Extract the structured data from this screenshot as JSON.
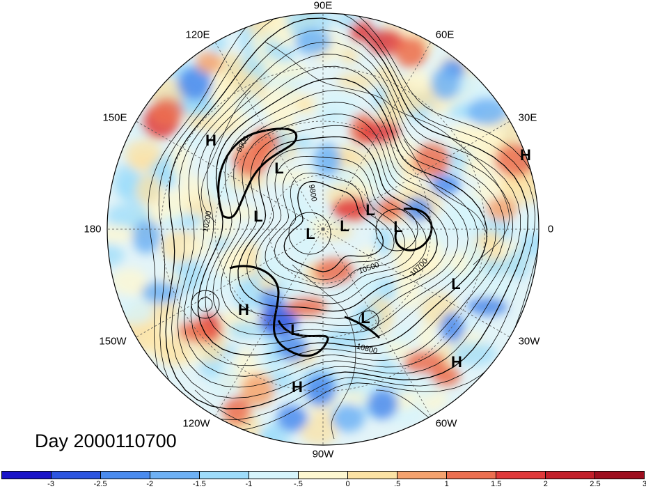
{
  "title": "Day 2000110700",
  "longitude_labels": {
    "lon_90E": "90E",
    "lon_60E": "60E",
    "lon_30E": "30E",
    "lon_0": "0",
    "lon_30W": "30W",
    "lon_60W": "60W",
    "lon_90W": "90W",
    "lon_120W": "120W",
    "lon_150W": "150W",
    "lon_180": "180",
    "lon_150E": "150E",
    "lon_120E": "120E"
  },
  "pressure_centers": {
    "h1": "H",
    "h2": "H",
    "h3": "H",
    "h4": "H",
    "h5": "H",
    "l1": "L",
    "l2": "L",
    "l3": "L",
    "l4": "L",
    "l5": "L",
    "l6": "L",
    "l7": "L",
    "l8": "L",
    "l9": "L"
  },
  "contour_labels": {
    "c9800": "9800",
    "c10500": "10500",
    "c10700": "10700",
    "c10800": "10800",
    "c10200": "10200",
    "c9900": "9900"
  },
  "colorbar": {
    "colors": [
      "#1a14c8",
      "#2d55e0",
      "#4a8bef",
      "#6eb1f5",
      "#9edcfa",
      "#d6f4fb",
      "#fdf7d0",
      "#fbe2a4",
      "#f5a26e",
      "#ec6f50",
      "#e0393a",
      "#c3202b",
      "#9e0f1f"
    ],
    "tick_labels": [
      "-3",
      "-2.5",
      "-2",
      "-1.5",
      "-1",
      "-.5",
      "0",
      ".5",
      "1",
      "1.5",
      "2",
      "2.5",
      "3"
    ]
  },
  "map_style": {
    "projection": "north polar stereographic",
    "grid": "dashed",
    "ocean_fill": "anomaly shading"
  }
}
